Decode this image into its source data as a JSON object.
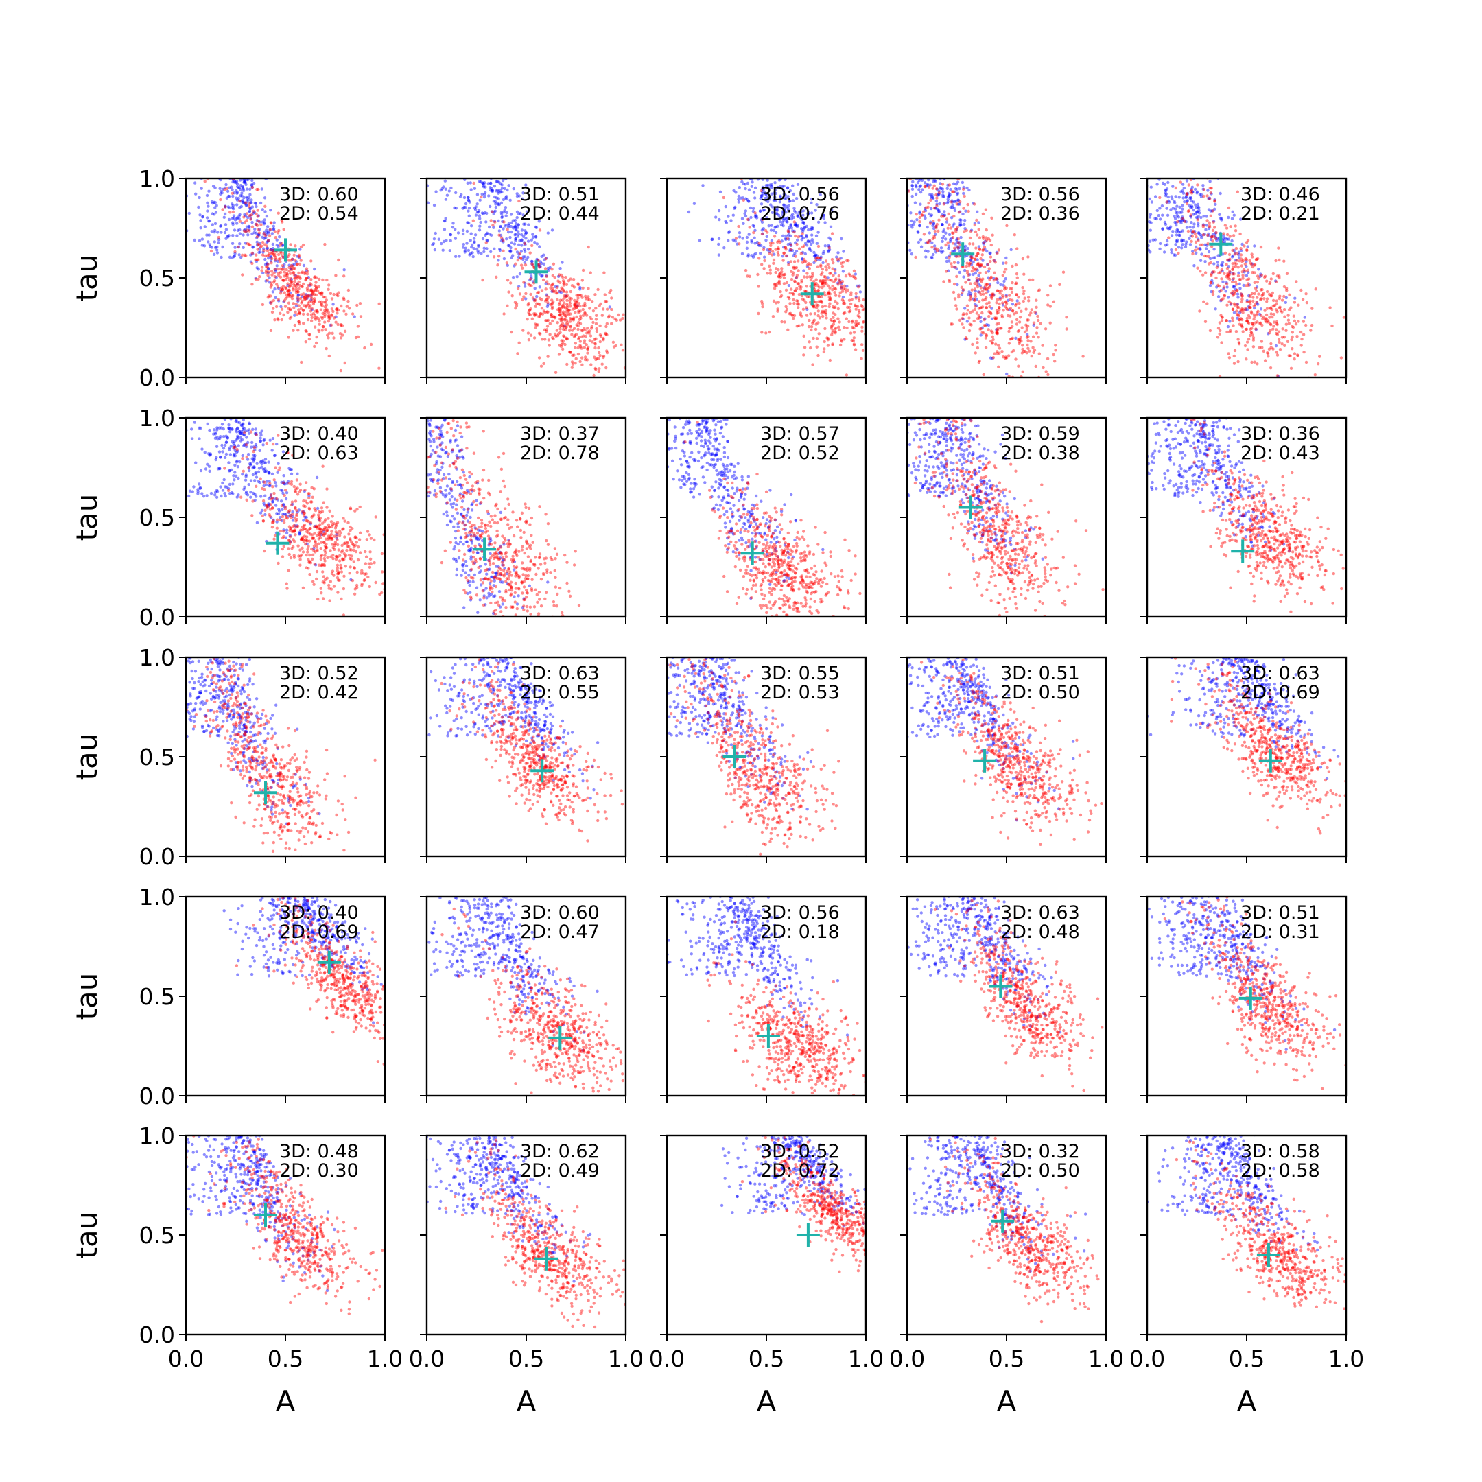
{
  "chart_data": {
    "type": "scatter",
    "layout": "5x5 grid of subplots",
    "xlabel": "A",
    "ylabel": "tau",
    "xlim": [
      0.0,
      1.0
    ],
    "ylim": [
      0.0,
      1.0
    ],
    "xticks": [
      "0.0",
      "0.5",
      "1.0"
    ],
    "yticks": [
      "0.0",
      "0.5",
      "1.0"
    ],
    "grid": false,
    "colors": {
      "series_a": "#0000ff",
      "series_b": "#ff0000",
      "marker": "#20b2aa"
    },
    "panels": [
      {
        "row": 0,
        "col": 0,
        "d3": "3D: 0.60",
        "d2": "2D: 0.54",
        "marker": [
          0.5,
          0.64
        ],
        "a": [
          0.3,
          0.9
        ],
        "b": [
          0.55,
          0.45
        ],
        "spread": 0.08
      },
      {
        "row": 0,
        "col": 1,
        "d3": "3D: 0.51",
        "d2": "2D: 0.44",
        "marker": [
          0.55,
          0.53
        ],
        "a": [
          0.35,
          0.9
        ],
        "b": [
          0.7,
          0.3
        ],
        "spread": 0.1
      },
      {
        "row": 0,
        "col": 2,
        "d3": "3D: 0.56",
        "d2": "2D: 0.76",
        "marker": [
          0.73,
          0.42
        ],
        "a": [
          0.55,
          0.9
        ],
        "b": [
          0.75,
          0.4
        ],
        "spread": 0.1
      },
      {
        "row": 0,
        "col": 3,
        "d3": "3D: 0.56",
        "d2": "2D: 0.36",
        "marker": [
          0.28,
          0.62
        ],
        "a": [
          0.2,
          0.95
        ],
        "b": [
          0.4,
          0.4
        ],
        "spread": 0.12
      },
      {
        "row": 0,
        "col": 4,
        "d3": "3D: 0.46",
        "d2": "2D: 0.21",
        "marker": [
          0.37,
          0.67
        ],
        "a": [
          0.25,
          0.95
        ],
        "b": [
          0.5,
          0.4
        ],
        "spread": 0.12
      },
      {
        "row": 1,
        "col": 0,
        "d3": "3D: 0.40",
        "d2": "2D: 0.63",
        "marker": [
          0.46,
          0.37
        ],
        "a": [
          0.3,
          0.95
        ],
        "b": [
          0.65,
          0.4
        ],
        "spread": 0.1
      },
      {
        "row": 1,
        "col": 1,
        "d3": "3D: 0.37",
        "d2": "2D: 0.78",
        "marker": [
          0.29,
          0.34
        ],
        "a": [
          0.1,
          0.8
        ],
        "b": [
          0.35,
          0.3
        ],
        "spread": 0.12
      },
      {
        "row": 1,
        "col": 2,
        "d3": "3D: 0.57",
        "d2": "2D: 0.52",
        "marker": [
          0.43,
          0.32
        ],
        "a": [
          0.25,
          0.8
        ],
        "b": [
          0.55,
          0.25
        ],
        "spread": 0.1
      },
      {
        "row": 1,
        "col": 3,
        "d3": "3D: 0.59",
        "d2": "2D: 0.38",
        "marker": [
          0.32,
          0.55
        ],
        "a": [
          0.25,
          0.95
        ],
        "b": [
          0.45,
          0.4
        ],
        "spread": 0.12
      },
      {
        "row": 1,
        "col": 4,
        "d3": "3D: 0.36",
        "d2": "2D: 0.43",
        "marker": [
          0.48,
          0.33
        ],
        "a": [
          0.3,
          0.95
        ],
        "b": [
          0.6,
          0.4
        ],
        "spread": 0.1
      },
      {
        "row": 2,
        "col": 0,
        "d3": "3D: 0.52",
        "d2": "2D: 0.42",
        "marker": [
          0.4,
          0.32
        ],
        "a": [
          0.2,
          0.95
        ],
        "b": [
          0.4,
          0.4
        ],
        "spread": 0.11
      },
      {
        "row": 2,
        "col": 1,
        "d3": "3D: 0.63",
        "d2": "2D: 0.55",
        "marker": [
          0.58,
          0.43
        ],
        "a": [
          0.4,
          0.95
        ],
        "b": [
          0.55,
          0.45
        ],
        "spread": 0.09
      },
      {
        "row": 2,
        "col": 2,
        "d3": "3D: 0.55",
        "d2": "2D: 0.53",
        "marker": [
          0.34,
          0.5
        ],
        "a": [
          0.25,
          0.95
        ],
        "b": [
          0.45,
          0.4
        ],
        "spread": 0.11
      },
      {
        "row": 2,
        "col": 3,
        "d3": "3D: 0.51",
        "d2": "2D: 0.50",
        "marker": [
          0.39,
          0.48
        ],
        "a": [
          0.3,
          0.95
        ],
        "b": [
          0.55,
          0.45
        ],
        "spread": 0.1
      },
      {
        "row": 2,
        "col": 4,
        "d3": "3D: 0.63",
        "d2": "2D: 0.69",
        "marker": [
          0.62,
          0.48
        ],
        "a": [
          0.5,
          0.95
        ],
        "b": [
          0.65,
          0.5
        ],
        "spread": 0.09
      },
      {
        "row": 3,
        "col": 0,
        "d3": "3D: 0.40",
        "d2": "2D: 0.69",
        "marker": [
          0.72,
          0.67
        ],
        "a": [
          0.6,
          0.95
        ],
        "b": [
          0.8,
          0.55
        ],
        "spread": 0.08
      },
      {
        "row": 3,
        "col": 1,
        "d3": "3D: 0.60",
        "d2": "2D: 0.47",
        "marker": [
          0.67,
          0.29
        ],
        "a": [
          0.35,
          0.9
        ],
        "b": [
          0.65,
          0.3
        ],
        "spread": 0.1
      },
      {
        "row": 3,
        "col": 2,
        "d3": "3D: 0.56",
        "d2": "2D: 0.18",
        "marker": [
          0.51,
          0.3
        ],
        "a": [
          0.4,
          0.9
        ],
        "b": [
          0.65,
          0.25
        ],
        "spread": 0.1
      },
      {
        "row": 3,
        "col": 3,
        "d3": "3D: 0.63",
        "d2": "2D: 0.48",
        "marker": [
          0.47,
          0.55
        ],
        "a": [
          0.35,
          0.95
        ],
        "b": [
          0.6,
          0.45
        ],
        "spread": 0.1
      },
      {
        "row": 3,
        "col": 4,
        "d3": "3D: 0.51",
        "d2": "2D: 0.31",
        "marker": [
          0.52,
          0.49
        ],
        "a": [
          0.35,
          0.95
        ],
        "b": [
          0.6,
          0.45
        ],
        "spread": 0.1
      },
      {
        "row": 4,
        "col": 0,
        "d3": "3D: 0.48",
        "d2": "2D: 0.30",
        "marker": [
          0.4,
          0.6
        ],
        "a": [
          0.3,
          0.95
        ],
        "b": [
          0.55,
          0.5
        ],
        "spread": 0.1
      },
      {
        "row": 4,
        "col": 1,
        "d3": "3D: 0.62",
        "d2": "2D: 0.49",
        "marker": [
          0.6,
          0.38
        ],
        "a": [
          0.35,
          0.95
        ],
        "b": [
          0.6,
          0.4
        ],
        "spread": 0.09
      },
      {
        "row": 4,
        "col": 2,
        "d3": "3D: 0.52",
        "d2": "2D: 0.72",
        "marker": [
          0.71,
          0.5
        ],
        "a": [
          0.65,
          0.95
        ],
        "b": [
          0.85,
          0.6
        ],
        "spread": 0.07
      },
      {
        "row": 4,
        "col": 3,
        "d3": "3D: 0.32",
        "d2": "2D: 0.50",
        "marker": [
          0.48,
          0.57
        ],
        "a": [
          0.35,
          0.95
        ],
        "b": [
          0.6,
          0.45
        ],
        "spread": 0.1
      },
      {
        "row": 4,
        "col": 4,
        "d3": "3D: 0.58",
        "d2": "2D: 0.58",
        "marker": [
          0.61,
          0.4
        ],
        "a": [
          0.4,
          0.95
        ],
        "b": [
          0.65,
          0.4
        ],
        "spread": 0.09
      }
    ]
  }
}
